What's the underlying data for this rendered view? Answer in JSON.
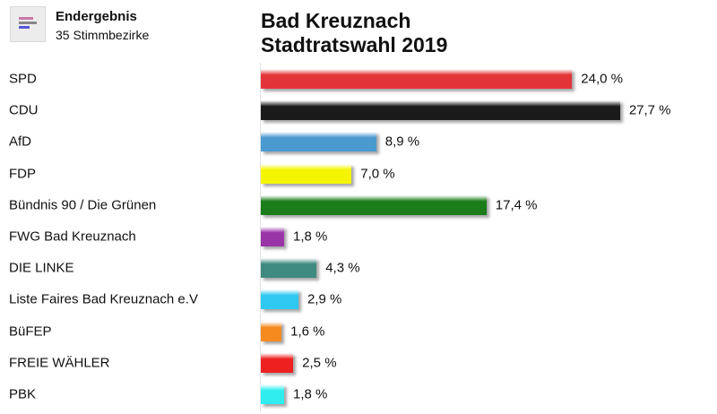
{
  "header": {
    "status": "Endergebnis",
    "districts": "35 Stimmbezirke"
  },
  "chart_data": {
    "type": "bar",
    "orientation": "horizontal",
    "title": "Bad Kreuznach",
    "subtitle": "Stadtratswahl 2019",
    "categories": [
      "SPD",
      "CDU",
      "AfD",
      "FDP",
      "Bündnis 90 / Die Grünen",
      "FWG Bad Kreuznach",
      "DIE LINKE",
      "Liste Faires Bad Kreuznach e.V",
      "BüFEP",
      "FREIE WÄHLER",
      "PBK"
    ],
    "values": [
      24.0,
      27.7,
      8.9,
      7.0,
      17.4,
      1.8,
      4.3,
      2.9,
      1.6,
      2.5,
      1.8
    ],
    "labels": [
      "24,0 %",
      "27,7 %",
      "8,9 %",
      "7,0 %",
      "17,4 %",
      "1,8 %",
      "4,3 %",
      "2,9 %",
      "1,6 %",
      "2,5 %",
      "1,8 %"
    ],
    "colors": [
      "#e3343a",
      "#1a1a1a",
      "#4a9ad0",
      "#f5f500",
      "#1a7d1a",
      "#9a35a8",
      "#3f8a80",
      "#2ec8f0",
      "#f58a1e",
      "#ee2020",
      "#30eeee"
    ],
    "unit": "%"
  }
}
